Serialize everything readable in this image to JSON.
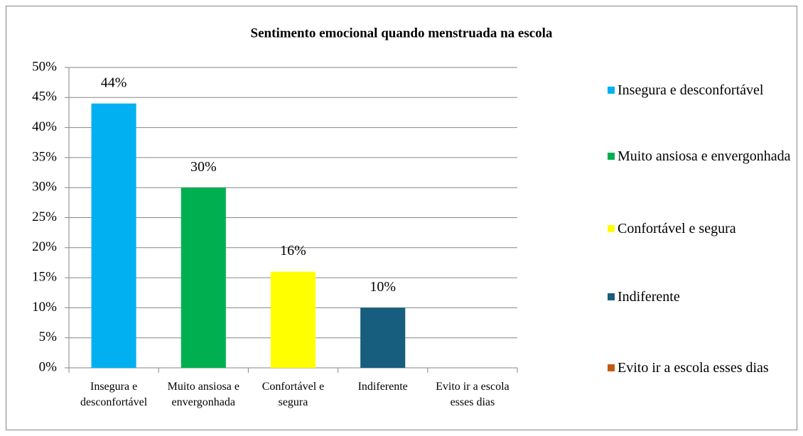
{
  "chart_data": {
    "type": "bar",
    "title": "Sentimento emocional quando menstruada na escola",
    "categories": [
      "Insegura e desconfortável",
      "Muito ansiosa e envergonhada",
      "Confortável e segura",
      "Indiferente",
      "Evito ir a escola esses dias"
    ],
    "values": [
      44,
      30,
      16,
      10,
      0
    ],
    "value_labels": [
      "44%",
      "30%",
      "16%",
      "10%",
      null
    ],
    "colors": [
      "#00b0f0",
      "#00b050",
      "#ffff00",
      "#175d7e",
      "#c55a11"
    ],
    "ylim": [
      0,
      50
    ],
    "yticks": [
      {
        "value": 0,
        "label": "0%"
      },
      {
        "value": 5,
        "label": "5%"
      },
      {
        "value": 10,
        "label": "10%"
      },
      {
        "value": 15,
        "label": "15%"
      },
      {
        "value": 20,
        "label": "20%"
      },
      {
        "value": 25,
        "label": "25%"
      },
      {
        "value": 30,
        "label": "30%"
      },
      {
        "value": 35,
        "label": "35%"
      },
      {
        "value": 40,
        "label": "40%"
      },
      {
        "value": 45,
        "label": "45%"
      },
      {
        "value": 50,
        "label": "50%"
      }
    ],
    "grid": true,
    "legend": "right"
  }
}
